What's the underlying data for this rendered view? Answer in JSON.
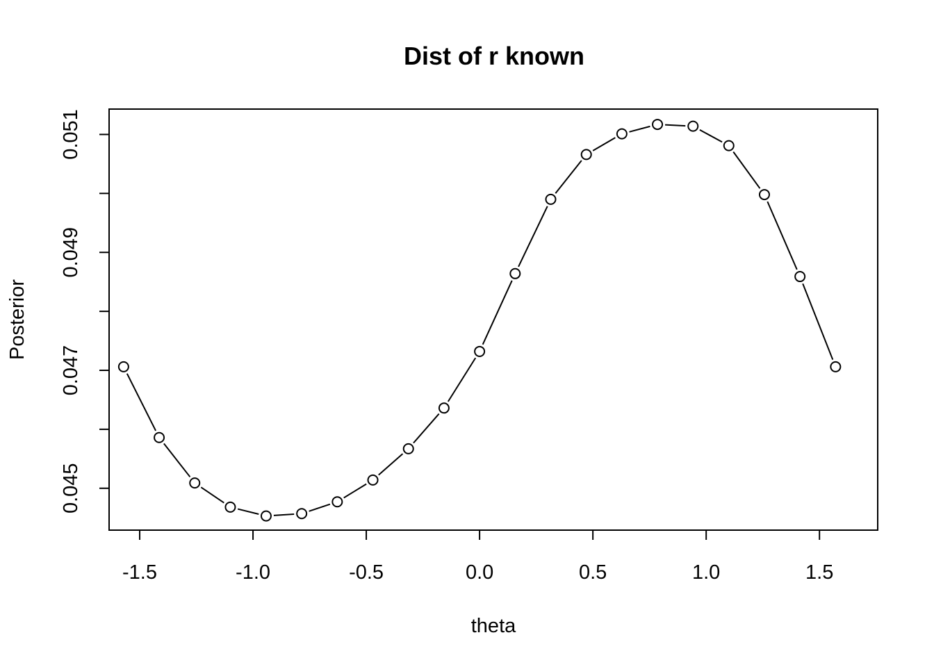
{
  "chart_data": {
    "type": "line",
    "title": "Dist of r known",
    "xlabel": "theta",
    "ylabel": "Posterior",
    "markers": "open-circle",
    "connected": true,
    "xlim": [
      -1.635,
      1.757
    ],
    "ylim": [
      0.04429,
      0.05143
    ],
    "xticks": [
      -1.5,
      -1.0,
      -0.5,
      0.0,
      0.5,
      1.0,
      1.5
    ],
    "xtick_labels": [
      "-1.5",
      "-1.0",
      "-0.5",
      "0.0",
      "0.5",
      "1.0",
      "1.5"
    ],
    "yticks": [
      0.045,
      0.046,
      0.047,
      0.048,
      0.049,
      0.05,
      0.051
    ],
    "ytick_labels": [
      "0.045",
      "",
      "0.047",
      "",
      "0.049",
      "",
      "0.051"
    ],
    "x": [
      -1.571,
      -1.414,
      -1.257,
      -1.1,
      -0.942,
      -0.785,
      -0.628,
      -0.471,
      -0.314,
      -0.157,
      0.0,
      0.157,
      0.314,
      0.471,
      0.628,
      0.785,
      0.942,
      1.1,
      1.257,
      1.414,
      1.571
    ],
    "y": [
      0.04706,
      0.04586,
      0.04509,
      0.04468,
      0.04453,
      0.04457,
      0.04477,
      0.04514,
      0.04567,
      0.04636,
      0.04732,
      0.04864,
      0.0499,
      0.05066,
      0.05101,
      0.05117,
      0.05114,
      0.05081,
      0.04998,
      0.04859,
      0.04706
    ]
  }
}
